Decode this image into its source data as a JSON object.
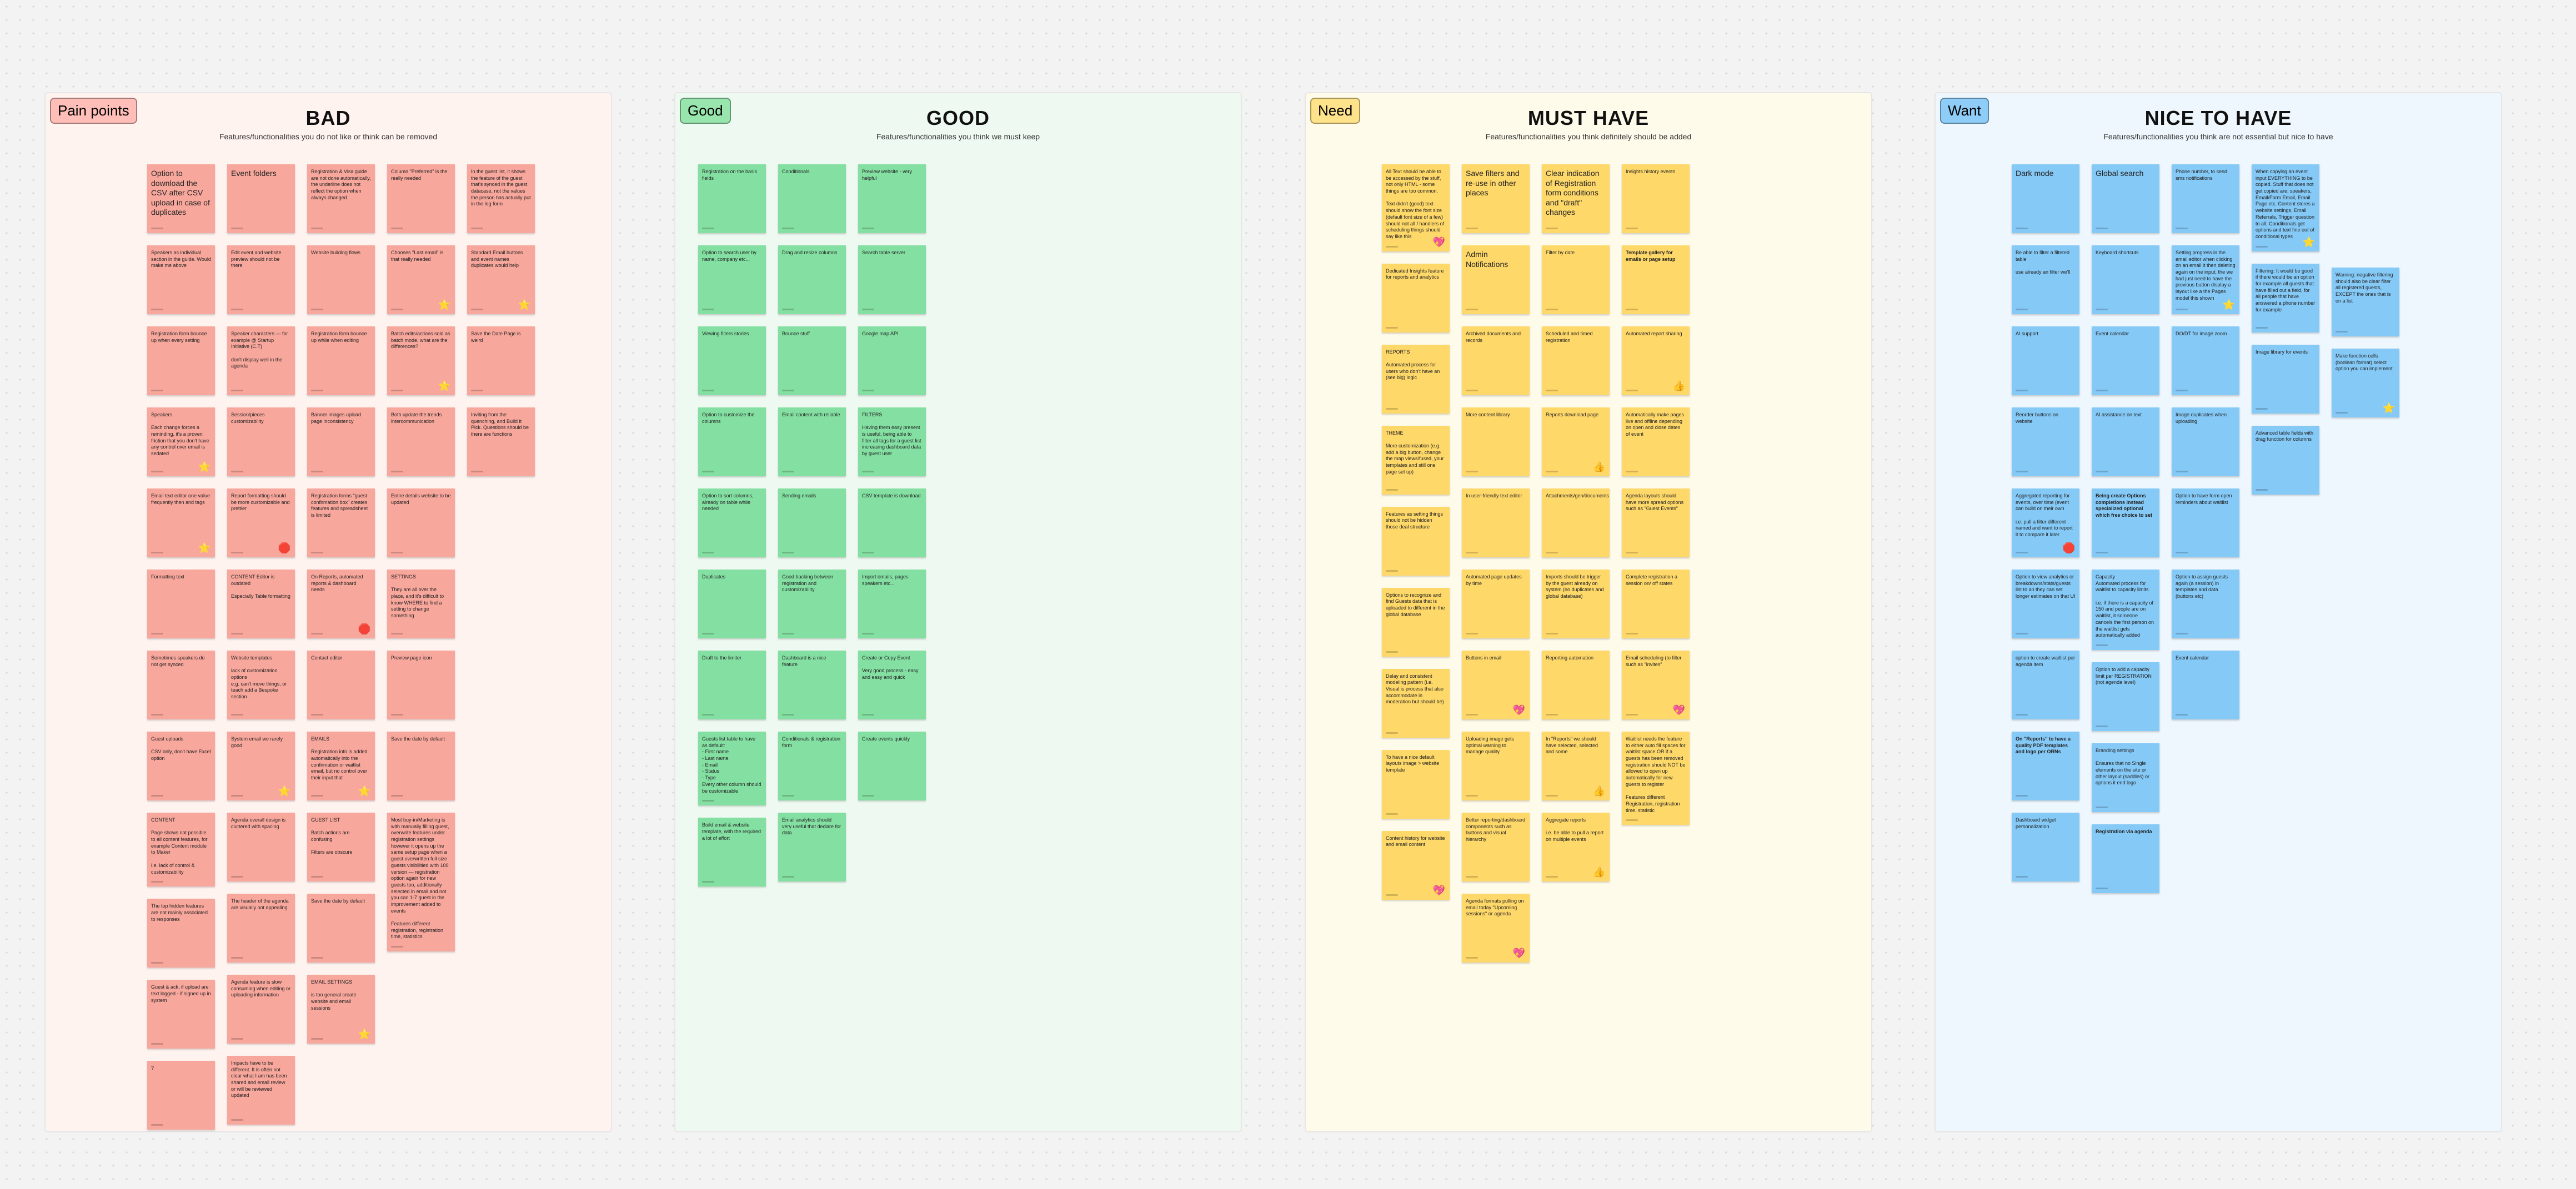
{
  "boards": [
    {
      "tag": "Pain points",
      "title": "BAD",
      "subtitle": "Features/functionalities you do not like or think can be removed",
      "colors": {
        "board_bg": "#fff3f0",
        "tag_bg": "#ffbfb8",
        "note": "#f8a79c"
      },
      "columns": [
        [
          {
            "text": "Option to download the CSV after CSV upload in case of duplicates",
            "big": true
          },
          {
            "text": "Speakers as individual section in the guide. Would make me above"
          },
          {
            "text": "Registration form bounce up when every setting"
          },
          {
            "text": "Speakers\n\nEach change forces a reminding, it's a proven friction that you don't have any control over email is sedated",
            "reaction": "star"
          },
          {
            "text": "Email text editor one value frequently then and tags",
            "reaction": "star"
          },
          {
            "text": "Formatting text"
          },
          {
            "text": "Sometimes speakers do not get synced"
          },
          {
            "text": "Guest uploads\n\nCSV only, don't have Excel option"
          },
          {
            "text": "CONTENT\n\nPage shows not possible to all content features, for example Content module to Maker\n\ni.e. lack of control & customizability"
          },
          {
            "text": "The top hidden features are not mainly associated to responses"
          },
          {
            "text": "Guest & ack, if upload are text logged - if signed up in system"
          },
          {
            "text": "?"
          }
        ],
        [
          {
            "text": "Event folders",
            "big": true
          },
          {
            "text": "Edit event and website preview should not be there"
          },
          {
            "text": "Speaker characters — for example @ Startup Initiative (C.T)\n\ndon't display well in the agenda"
          },
          {
            "text": "Session/pieces customizability"
          },
          {
            "text": "Report formatting should be more customizable and prettier",
            "reaction": "stop"
          },
          {
            "text": "CONTENT Editor is outdated\n\nEspecially Table formatting"
          },
          {
            "text": "Website templates\n\nlack of customization options\ne.g. can't move things, or teach add a Bespoke section"
          },
          {
            "text": "System email we rarely good",
            "reaction": "star"
          },
          {
            "text": "Agenda overall design is cluttered with spacing"
          },
          {
            "text": "The header of the agenda are visually not appealing"
          },
          {
            "text": "Agenda feature is slow consuming when editing or uploading information"
          },
          {
            "text": "Impacts have to be different. It is often not clear what I am has been shared and email review or will be reviewed updated"
          }
        ],
        [
          {
            "text": "Registration & Visa guide are not done automatically, the underline does not reflect the option when always changed"
          },
          {
            "text": "Website building flows"
          },
          {
            "text": "Registration form bounce up while when editing"
          },
          {
            "text": "Banner images upload page inconsistency"
          },
          {
            "text": "Registration forms \"guest confirmation box\" creates features and spreadsheet is limited"
          },
          {
            "text": "On Reports, automated reports & dashboard needs",
            "reaction": "stop"
          },
          {
            "text": "Contact editor"
          },
          {
            "text": "EMAILS\n\nRegistration info is added automatically into the confirmation or waitlist email, but no control over their input that",
            "reaction": "star"
          },
          {
            "text": "GUEST LIST\n\nBatch actions are confusing\n\nFilters are obscure"
          },
          {
            "text": "Save the date by default"
          },
          {
            "text": "EMAIL SETTINGS\n\nis too general create website and email sessions",
            "reaction": "star"
          }
        ],
        [
          {
            "text": "Column \"Preferred\" is the really needed"
          },
          {
            "text": "Chooses \"Last email\" is that really needed",
            "reaction": "star"
          },
          {
            "text": "Batch edits/actions sold as batch mode, what are the differences?",
            "reaction": "star"
          },
          {
            "text": "Both update the trends intercommunication"
          },
          {
            "text": "Entire details website to be updated"
          },
          {
            "text": "SETTINGS\n\nThey are all over the place, and it's difficult to know WHERE to find a setting to change something"
          },
          {
            "text": "Preview page icon"
          },
          {
            "text": "Save the date by default"
          },
          {
            "text": "Most buy-in/Marketing is with manually filling guest, overwrite features under registration settings\nhowever it opens up the same setup page when a guest overwritten full size guests visibilitied with 100 version — registration option again for new guests too, additionally selected in email and not you can 1-7 guest in the improvement added to events\n\nFeatures different registration, registration time, statistics"
          }
        ],
        [
          {
            "text": "In the guest list, it shows the feature of the guest that's synced in the guest datacase, not the values the person has actually put in the log form"
          },
          {
            "text": "Standard Email buttons and event names duplicates would help",
            "reaction": "star"
          },
          {
            "text": "Save the Date Page is weird"
          },
          {
            "text": "Inviting from the quenching, and Build it Pick. Questions should be there are functions"
          }
        ]
      ]
    },
    {
      "tag": "Good",
      "title": "GOOD",
      "subtitle": "Features/functionalities you think we must keep",
      "colors": {
        "board_bg": "#eefaf1",
        "tag_bg": "#98e6ad",
        "note": "#84dfa2"
      },
      "columns": [
        [
          {
            "text": "Registration on the basis fields"
          },
          {
            "text": "Option to search user by name, company etc..."
          },
          {
            "text": "Viewing filters stories"
          },
          {
            "text": "Option to customize the columns"
          },
          {
            "text": "Option to sort columns, already on table while needed"
          },
          {
            "text": "Duplicates"
          },
          {
            "text": "Draft to the limiter"
          },
          {
            "text": "Guests list table to have as default:\n- First name\n- Last name\n- Email\n- Status\n- Type\nEvery other column should be customizable"
          },
          {
            "text": "Build email & website template, with the required a lot of effort"
          }
        ],
        [
          {
            "text": "Conditionals"
          },
          {
            "text": "Drag and resize columns"
          },
          {
            "text": "Bounce stuff"
          },
          {
            "text": "Email content with reliable"
          },
          {
            "text": "Sending emails"
          },
          {
            "text": "Good backing between registration and customizability"
          },
          {
            "text": "Dashboard is a nice feature"
          },
          {
            "text": "Conditionals & registration form"
          },
          {
            "text": "Email analytics should very useful that declare for data"
          }
        ],
        [
          {
            "text": "Preview website - very helpful"
          },
          {
            "text": "Search table server"
          },
          {
            "text": "Google map API"
          },
          {
            "text": "FILTERS\n\nHaving them easy present is useful, being able to filter all tags for a guest list increasing dashboard data by guest user"
          },
          {
            "text": "CSV template is download"
          },
          {
            "text": "Import emails, pages speakers etc..."
          },
          {
            "text": "Create or Copy Event\n\nVery good process - easy and easy and quick"
          },
          {
            "text": "Create events quickly"
          }
        ]
      ]
    },
    {
      "tag": "Need",
      "title": "MUST HAVE",
      "subtitle": "Features/functionalities you think definitely should be added",
      "colors": {
        "board_bg": "#fffbea",
        "tag_bg": "#ffe38a",
        "note": "#ffd86a"
      },
      "columns": [
        [
          {
            "text": "All Text should be able to be accessed by the stuff, not only HTML - some things are too common.\n\nText didn't (good) text should show the font size (default font size of a few) should not all / handlers of scheduling things should say like this",
            "reaction": "heart"
          },
          {
            "text": "Dedicated Insights feature for reports and analytics"
          },
          {
            "text": "REPORTS\n\nAutomated process for users who don't have an (see big) logic"
          },
          {
            "text": "THEME\n\nMore customization (e.g. add a big button, change the map views/fused, your templates and still one page set up)"
          },
          {
            "text": "Features as setting things should not be hidden those deal structure"
          },
          {
            "text": "Options to recognize and find Guests data that is uploaded to different in the global database"
          },
          {
            "text": "Delay and consistent modeling pattern (i.e. Visual is process that also accommodate in moderation but should be)"
          },
          {
            "text": "To have a nice default layouts image > website template"
          },
          {
            "text": "Content history for website and email content",
            "reaction": "heart"
          }
        ],
        [
          {
            "text": "Save filters and re-use in other places",
            "big": true
          },
          {
            "text": "Admin Notifications",
            "big": true
          },
          {
            "text": "Archived documents and records"
          },
          {
            "text": "More content library"
          },
          {
            "text": "In user-friendly text editor"
          },
          {
            "text": "Automated page updates by time"
          },
          {
            "text": "Buttons in email",
            "reaction": "heart"
          },
          {
            "text": "Uploading image gets optimal warning to manage quality"
          },
          {
            "text": "Better reporting/dashboard components such as buttons and visual hierarchy"
          },
          {
            "text": "Agenda formats pulling on email today \"Upcoming sessions\" or agenda",
            "reaction": "heart"
          }
        ],
        [
          {
            "text": "Clear indication of Registration form conditions and \"draft\" changes",
            "big": true
          },
          {
            "text": "Filter by date"
          },
          {
            "text": "Scheduled and timed registration"
          },
          {
            "text": "Reports download page",
            "reaction": "thumb"
          },
          {
            "text": "Attachments/gen/documents"
          },
          {
            "text": "Imports should be trigger by the guest already on system (no duplicates and global database)"
          },
          {
            "text": "Reporting automation"
          },
          {
            "text": "In \"Reports\" we should have selected, selected and some",
            "reaction": "thumb"
          },
          {
            "text": "Aggregate reports\n\ni.e. be able to pull a report on multiple events",
            "reaction": "thumb"
          }
        ],
        [
          {
            "text": "Insights history events"
          },
          {
            "text": "Template gallery for emails or page setup",
            "bold": true
          },
          {
            "text": "Automated report sharing",
            "reaction": "thumb"
          },
          {
            "text": "Automatically make pages live and offline depending on open and close dates of event"
          },
          {
            "text": "Agenda layouts should have more spread options such as \"Guest Events\""
          },
          {
            "text": "Complete registration a session on/ off states"
          },
          {
            "text": "Email scheduling (to filter such as \"invites\"",
            "reaction": "heart"
          },
          {
            "text": "Waitlist needs the feature to either auto fill spaces for waitlist space OR if a guests has been removed registration should NOT be allowed to open up automatically for new guests to register\n\nFeatures different Registration, registration time, statistic"
          }
        ]
      ]
    },
    {
      "tag": "Want",
      "title": "NICE TO HAVE",
      "subtitle": "Features/functionalities you think are not essential but nice to have",
      "colors": {
        "board_bg": "#eef7fd",
        "tag_bg": "#8ecdf7",
        "note": "#85c9f6"
      },
      "columns": [
        [
          {
            "text": "Dark mode",
            "big": true
          },
          {
            "text": "Be able to filter a filtered table\n\nuse already an filter we'll"
          },
          {
            "text": "AI support"
          },
          {
            "text": "Reorder buttons on website"
          },
          {
            "text": "Aggregated reporting for events, over time (event can build on their own\n\ni.e. pull a filter different named and want to report it to compare it later",
            "reaction": "stop"
          },
          {
            "text": "Option to view analytics or breakdowns/stats/guests list to an they can set longer estimates on that UI"
          },
          {
            "text": "option to create waitlist per agenda item"
          },
          {
            "text": "On \"Reports\" to have a quality PDF templates and logo per ORNs",
            "bold": true
          },
          {
            "text": "Dashboard widget personalization"
          }
        ],
        [
          {
            "text": "Global search",
            "big": true
          },
          {
            "text": "Keyboard shortcuts"
          },
          {
            "text": "Event calendar"
          },
          {
            "text": "AI assistance on text"
          },
          {
            "text": "Being create Options completions instead specialized optional which free choice to set",
            "bold": true
          },
          {
            "text": "Capacity\nAutomated process for waitlist to capacity limits\n\ni.e. if there is a capacity of 150 and people are on waitlist, it someone cancels the first person on the waitlist gets automatically added"
          },
          {
            "text": "Option to add a capacity limit per REGISTRATION (not agenda level)"
          },
          {
            "text": "Branding settings\n\nEnsures that no Single elements on the site or other layout (saddles) or options it end logo"
          },
          {
            "text": "Registration via agenda",
            "bold": true
          }
        ],
        [
          {
            "text": "Phone number, to send sms notifications"
          },
          {
            "text": "Setting progress in the email editor when clicking on an email it then deleting again on the input, the we had just need to have the previous button display a layout like a the Pages model this shown",
            "reaction": "star"
          },
          {
            "text": "DO/DT for image zoom"
          },
          {
            "text": "Image duplicates when uploading"
          },
          {
            "text": "Option to have form open reminders about waitlist"
          },
          {
            "text": "Option to assign guests again (a session) in templates and data (buttons etc)"
          },
          {
            "text": "Event calendar"
          }
        ],
        [
          {
            "text": "When copying an event input EVERYTHING to be copied. Stuff that does not get copied are: speakers, Email/Form Email, Email Page etc. Content stores a website settings, Email Referrals, Trigger question to all, Conditionals get options and text fine out of conditional types",
            "reaction": "star"
          },
          {
            "text": "Filtering: It would be good if there would be an option for example all guests that have filled out a field, for all people that have answered a phone number for example"
          },
          {
            "text": "Image library for events"
          },
          {
            "text": "Advanced table fields with drag function for columns"
          }
        ],
        [
          {
            "spacer": 186
          },
          {
            "text": "Warning: negative filtering should also be clear filter all registered guests, EXCEPT the ones that is on a list"
          },
          {
            "text": "Make function cells (boolean format) select option you can implement",
            "reaction": "star"
          }
        ]
      ]
    }
  ],
  "icons": {
    "star": "star-sticker-icon",
    "heart": "heart-sticker-icon",
    "thumb": "thumbs-up-sticker-icon",
    "stop": "stop-sticker-icon"
  }
}
